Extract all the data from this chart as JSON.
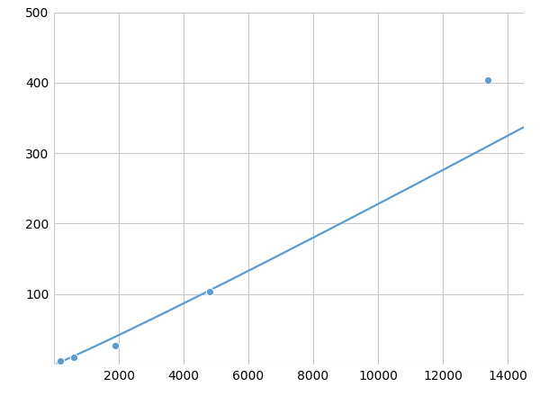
{
  "x": [
    200,
    600,
    1900,
    4800,
    13400
  ],
  "y": [
    5,
    10,
    27,
    103,
    403
  ],
  "line_color": "#5b9bd5",
  "marker_color": "#5b9bd5",
  "marker_size": 6,
  "line_width": 1.6,
  "xlim": [
    0,
    14500
  ],
  "ylim": [
    0,
    500
  ],
  "xticks": [
    0,
    2000,
    4000,
    6000,
    8000,
    10000,
    12000,
    14000
  ],
  "yticks": [
    0,
    100,
    200,
    300,
    400,
    500
  ],
  "xtick_labels": [
    "",
    "2000",
    "4000",
    "6000",
    "8000",
    "10000",
    "12000",
    "14000"
  ],
  "ytick_labels": [
    "",
    "100",
    "200",
    "300",
    "400",
    "500"
  ],
  "grid_color": "#c8c8c8",
  "background_color": "#ffffff",
  "tick_fontsize": 10
}
